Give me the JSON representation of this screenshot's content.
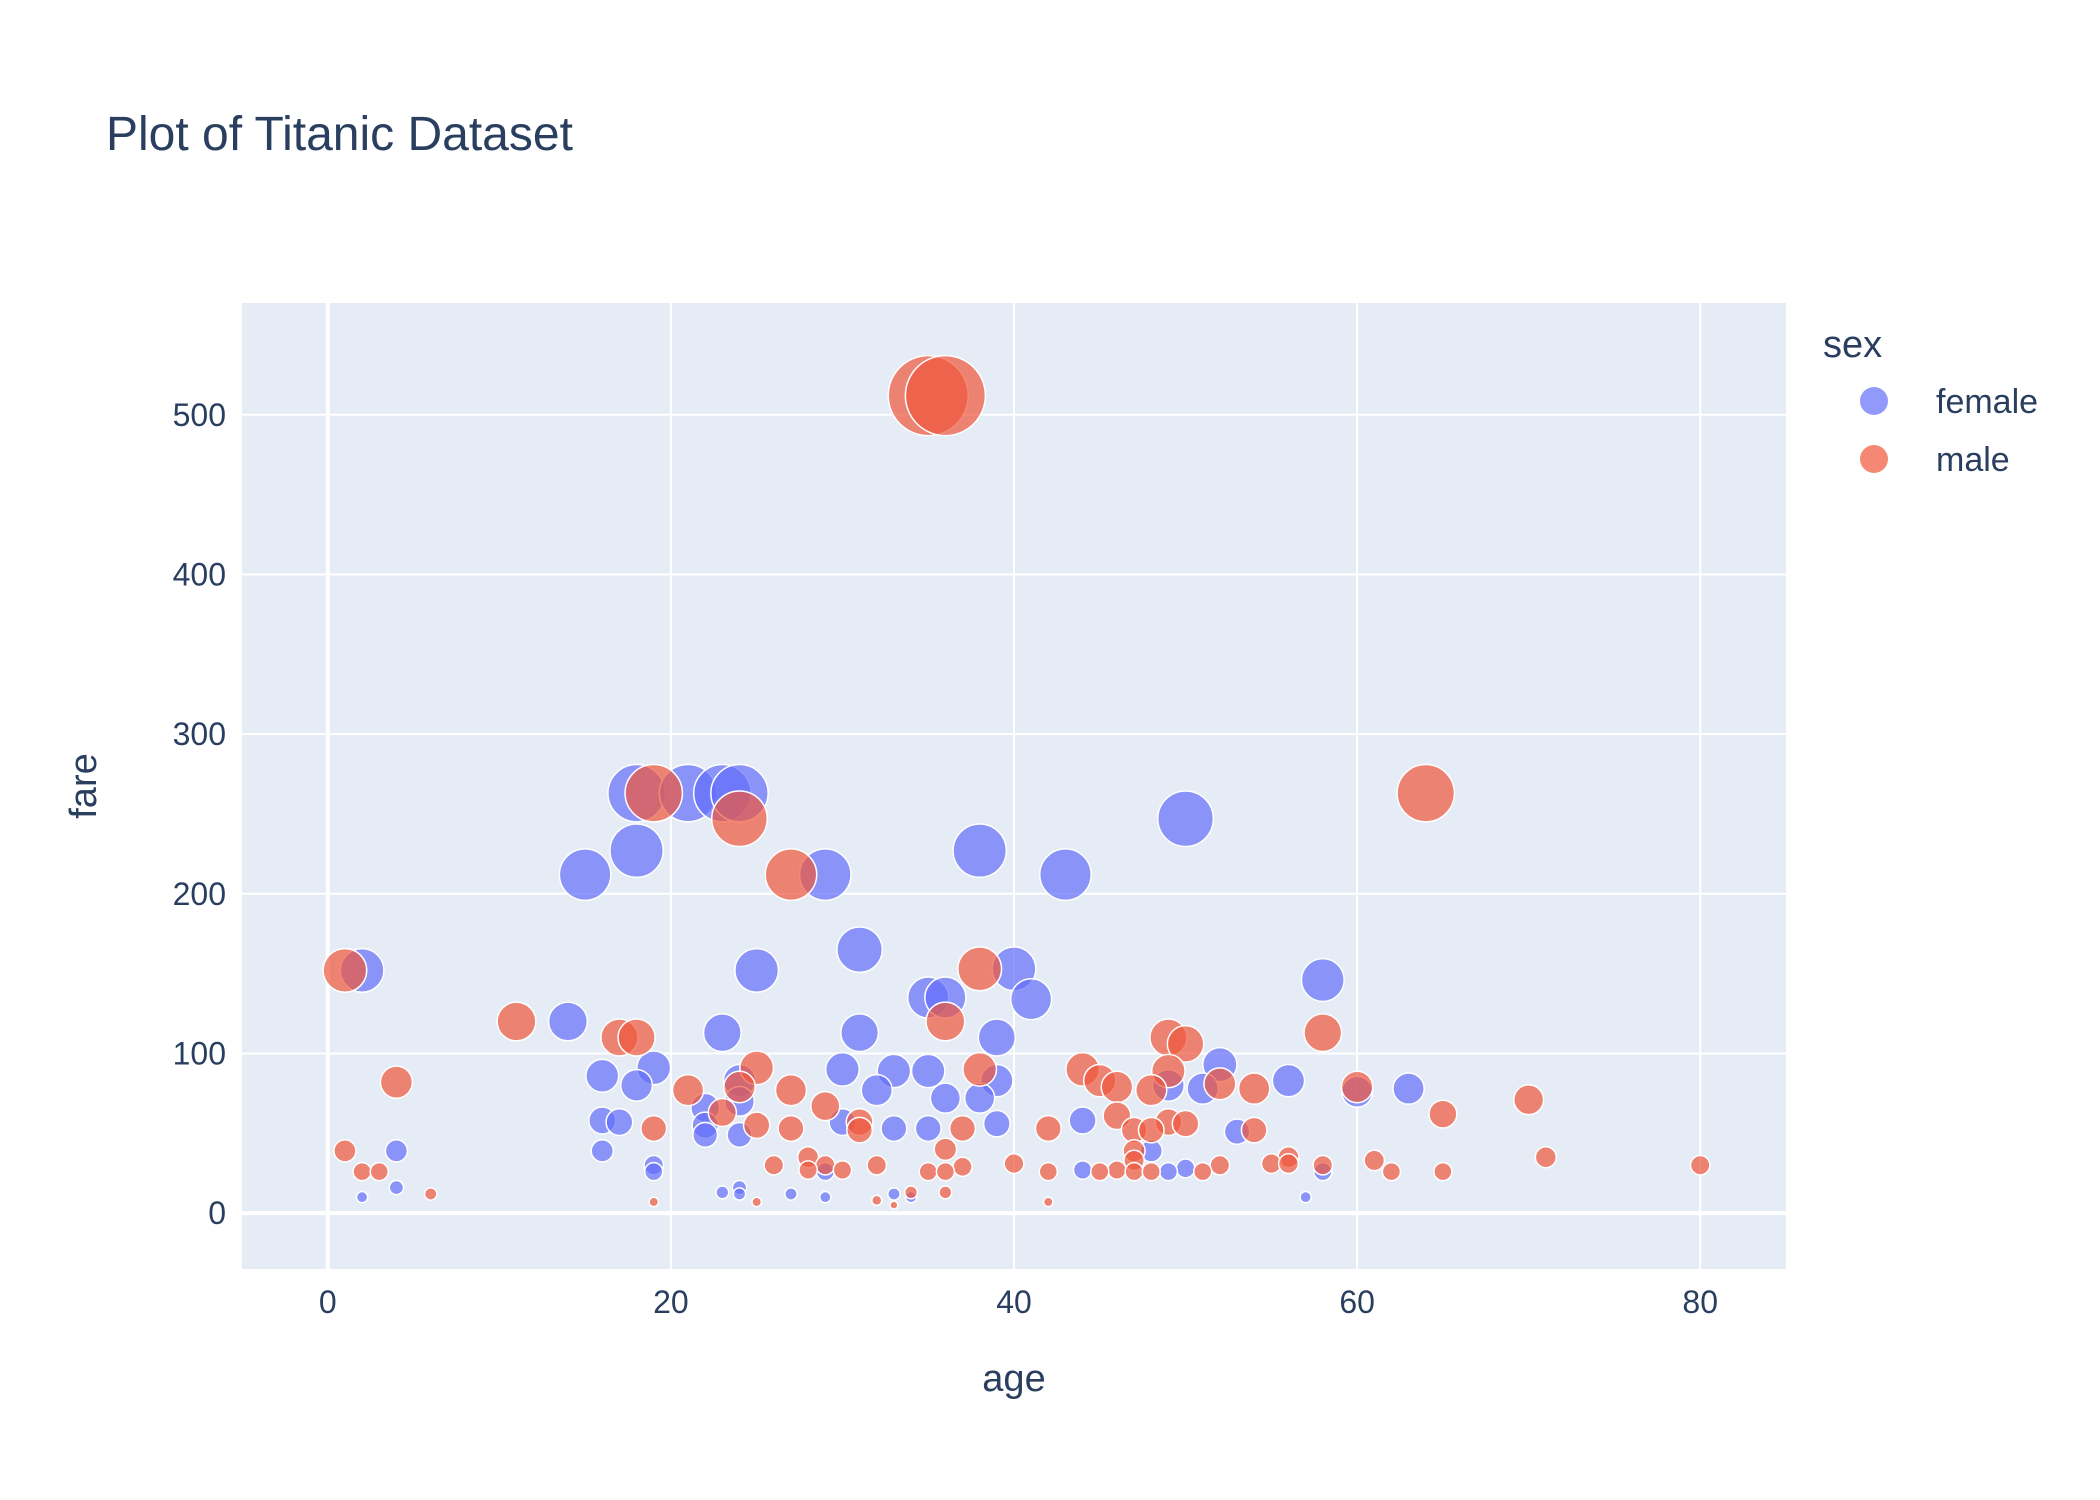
{
  "chart_data": {
    "type": "scatter",
    "title": "Plot of Titanic Dataset",
    "xlabel": "age",
    "ylabel": "fare",
    "xlim": [
      -5,
      85
    ],
    "ylim": [
      -35,
      570
    ],
    "x_ticks": [
      0,
      20,
      40,
      60,
      80
    ],
    "y_ticks": [
      0,
      100,
      200,
      300,
      400,
      500
    ],
    "grid": true,
    "marker_size_encodes": "fare",
    "legend": {
      "title": "sex",
      "placement": "top-right outside plot"
    },
    "series": [
      {
        "name": "female",
        "color": "#636efa",
        "points": [
          [
            2,
            152
          ],
          [
            18,
            263
          ],
          [
            21,
            263
          ],
          [
            23,
            263
          ],
          [
            24,
            263
          ],
          [
            18,
            227
          ],
          [
            15,
            212
          ],
          [
            29,
            212
          ],
          [
            38,
            227
          ],
          [
            43,
            212
          ],
          [
            50,
            247
          ],
          [
            31,
            165
          ],
          [
            25,
            152
          ],
          [
            40,
            153
          ],
          [
            41,
            134
          ],
          [
            35,
            135
          ],
          [
            36,
            135
          ],
          [
            14,
            120
          ],
          [
            23,
            113
          ],
          [
            31,
            113
          ],
          [
            39,
            110
          ],
          [
            19,
            91
          ],
          [
            30,
            90
          ],
          [
            33,
            89
          ],
          [
            35,
            89
          ],
          [
            16,
            86
          ],
          [
            18,
            80
          ],
          [
            24,
            83
          ],
          [
            39,
            83
          ],
          [
            52,
            93
          ],
          [
            56,
            83
          ],
          [
            63,
            78
          ],
          [
            32,
            77
          ],
          [
            36,
            72
          ],
          [
            38,
            72
          ],
          [
            24,
            70
          ],
          [
            60,
            76
          ],
          [
            22,
            66
          ],
          [
            17,
            57
          ],
          [
            16,
            58
          ],
          [
            30,
            57
          ],
          [
            39,
            56
          ],
          [
            44,
            58
          ],
          [
            22,
            55
          ],
          [
            22,
            49
          ],
          [
            24,
            49
          ],
          [
            33,
            53
          ],
          [
            35,
            53
          ],
          [
            53,
            51
          ],
          [
            4,
            39
          ],
          [
            16,
            39
          ],
          [
            19,
            30
          ],
          [
            19,
            26
          ],
          [
            29,
            26
          ],
          [
            44,
            27
          ],
          [
            48,
            39
          ],
          [
            49,
            26
          ],
          [
            50,
            28
          ],
          [
            58,
            26
          ],
          [
            4,
            16
          ],
          [
            2,
            10
          ],
          [
            23,
            13
          ],
          [
            24,
            16
          ],
          [
            24,
            12
          ],
          [
            27,
            12
          ],
          [
            29,
            10
          ],
          [
            33,
            12
          ],
          [
            34,
            10
          ],
          [
            57,
            10
          ],
          [
            49,
            80
          ],
          [
            51,
            78
          ],
          [
            58,
            146
          ]
        ]
      },
      {
        "name": "male",
        "color": "#ef553b",
        "points": [
          [
            35,
            512
          ],
          [
            36,
            512
          ],
          [
            64,
            263
          ],
          [
            19,
            263
          ],
          [
            24,
            247
          ],
          [
            27,
            212
          ],
          [
            38,
            153
          ],
          [
            1,
            152
          ],
          [
            36,
            120
          ],
          [
            11,
            120
          ],
          [
            17,
            110
          ],
          [
            18,
            110
          ],
          [
            49,
            110
          ],
          [
            50,
            106
          ],
          [
            58,
            113
          ],
          [
            4,
            82
          ],
          [
            21,
            77
          ],
          [
            24,
            79
          ],
          [
            25,
            91
          ],
          [
            27,
            77
          ],
          [
            38,
            90
          ],
          [
            44,
            90
          ],
          [
            45,
            83
          ],
          [
            46,
            79
          ],
          [
            48,
            77
          ],
          [
            49,
            89
          ],
          [
            52,
            81
          ],
          [
            54,
            78
          ],
          [
            60,
            79
          ],
          [
            70,
            71
          ],
          [
            23,
            63
          ],
          [
            29,
            67
          ],
          [
            31,
            57
          ],
          [
            31,
            52
          ],
          [
            19,
            53
          ],
          [
            25,
            55
          ],
          [
            27,
            53
          ],
          [
            37,
            53
          ],
          [
            42,
            53
          ],
          [
            46,
            61
          ],
          [
            47,
            52
          ],
          [
            48,
            52
          ],
          [
            49,
            57
          ],
          [
            50,
            56
          ],
          [
            54,
            52
          ],
          [
            65,
            62
          ],
          [
            1,
            39
          ],
          [
            2,
            26
          ],
          [
            3,
            26
          ],
          [
            26,
            30
          ],
          [
            28,
            35
          ],
          [
            28,
            27
          ],
          [
            29,
            30
          ],
          [
            30,
            27
          ],
          [
            32,
            30
          ],
          [
            35,
            26
          ],
          [
            36,
            40
          ],
          [
            36,
            26
          ],
          [
            37,
            29
          ],
          [
            40,
            31
          ],
          [
            42,
            26
          ],
          [
            45,
            26
          ],
          [
            46,
            27
          ],
          [
            47,
            39
          ],
          [
            47,
            33
          ],
          [
            47,
            26
          ],
          [
            48,
            26
          ],
          [
            51,
            26
          ],
          [
            52,
            30
          ],
          [
            55,
            31
          ],
          [
            56,
            35
          ],
          [
            56,
            31
          ],
          [
            58,
            30
          ],
          [
            61,
            33
          ],
          [
            62,
            26
          ],
          [
            65,
            26
          ],
          [
            71,
            35
          ],
          [
            80,
            30
          ],
          [
            6,
            12
          ],
          [
            19,
            7
          ],
          [
            25,
            7
          ],
          [
            32,
            8
          ],
          [
            33,
            5
          ],
          [
            34,
            13
          ],
          [
            36,
            13
          ],
          [
            42,
            7
          ]
        ]
      }
    ]
  }
}
